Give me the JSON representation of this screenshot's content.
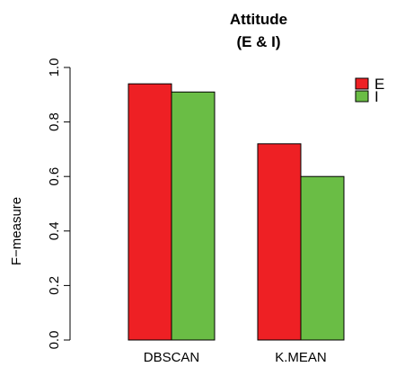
{
  "chart_data": {
    "type": "bar",
    "title": "Attitude",
    "subtitle": "(E & I)",
    "xlabel": "",
    "ylabel": "F−measure",
    "categories": [
      "DBSCAN",
      "K.MEAN"
    ],
    "series": [
      {
        "name": "E",
        "values": [
          0.94,
          0.72
        ],
        "color": "#ee2024"
      },
      {
        "name": "I",
        "values": [
          0.91,
          0.6
        ],
        "color": "#6abd45"
      }
    ],
    "ylim": [
      0,
      1.0
    ],
    "yticks": [
      "0.0",
      "0.2",
      "0.4",
      "0.6",
      "0.8",
      "1.0"
    ],
    "grid": false,
    "legend_position": "top-right"
  }
}
